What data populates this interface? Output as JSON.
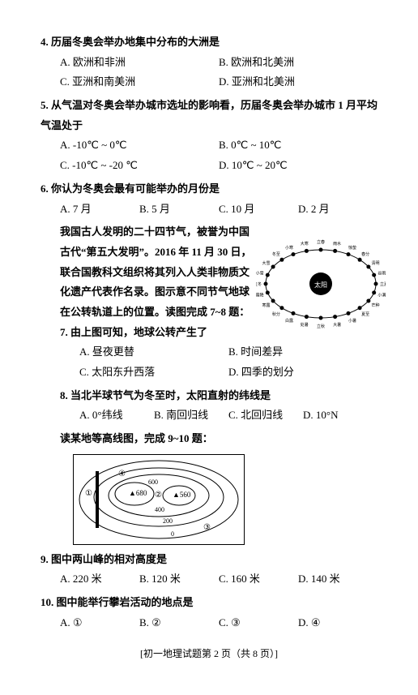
{
  "q4": {
    "stem": "4. 历届冬奥会举办地集中分布的大洲是",
    "A": "A. 欧洲和非洲",
    "B": "B. 欧洲和北美洲",
    "C": "C. 亚洲和南美洲",
    "D": "D. 亚洲和北美洲"
  },
  "q5": {
    "stem": "5. 从气温对冬奥会举办城市选址的影响看，历届冬奥会举办城市 1 月平均气温处于",
    "A": "A. -10℃ ~ 0℃",
    "B": "B. 0℃ ~ 10℃",
    "C": "C. -10℃ ~ -20 ℃",
    "D": "D. 10℃ ~ 20℃"
  },
  "q6": {
    "stem": "6. 你认为冬奥会最有可能举办的月份是",
    "A": "A. 7 月",
    "B": "B. 5 月",
    "C": "C. 10 月",
    "D": "D. 2 月"
  },
  "passage7_8": "我国古人发明的二十四节气，被誉为中国古代“第五大发明”。2016 年 11 月 30 日，联合国教科文组织将其列入人类非物质文化遗产代表作名录。图示意不同节气地球在公转轨道上的位置。读图完成 7~8 题：",
  "q7": {
    "stem": "7. 由上图可知，地球公转产生了",
    "A": "A. 昼夜更替",
    "B": "B. 时间差异",
    "C": "C. 太阳东升西落",
    "D": "D. 四季的划分"
  },
  "q8": {
    "stem": "8. 当北半球节气为冬至时，太阳直射的纬线是",
    "A": "A. 0°纬线",
    "B": "B. 南回归线",
    "C": "C. 北回归线",
    "D": "D. 10°N"
  },
  "passage9_10": "读某地等高线图，完成 9~10 题：",
  "q9": {
    "stem": "9. 图中两山峰的相对高度是",
    "A": "A. 220 米",
    "B": "B. 120 米",
    "C": "C. 160 米",
    "D": "D. 140 米"
  },
  "q10": {
    "stem": "10. 图中能举行攀岩活动的地点是",
    "A": "A. ①",
    "B": "B. ②",
    "C": "C. ③",
    "D": "D. ④"
  },
  "footer": "[初一地理试题第 2 页（共 8 页）]",
  "solar": {
    "center": "太阳",
    "terms": [
      "立春",
      "雨水",
      "惊蛰",
      "春分",
      "清明",
      "谷雨",
      "立夏",
      "小满",
      "芒种",
      "夏至",
      "小暑",
      "大暑",
      "立秋",
      "处暑",
      "白露",
      "秋分",
      "寒露",
      "霜降",
      "立冬",
      "小雪",
      "大雪",
      "冬至",
      "小寒",
      "大寒"
    ]
  },
  "contour": {
    "peak1": "▲680",
    "peak2": "▲560",
    "lines": [
      "600",
      "400",
      "200",
      "0"
    ],
    "points": [
      "①",
      "②",
      "③",
      "④"
    ]
  }
}
